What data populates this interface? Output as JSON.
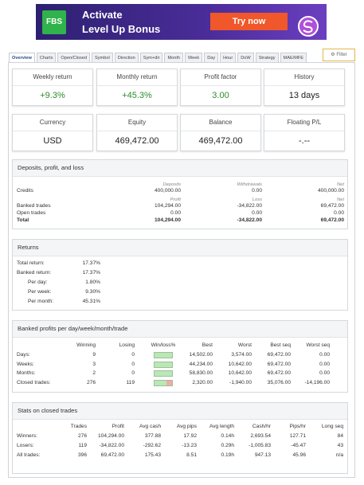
{
  "banner": {
    "brand": "FBS",
    "line1": "Activate",
    "line2": "Level Up Bonus",
    "button": "Try now"
  },
  "tabs": [
    "Overview",
    "Charts",
    "Open/Closed",
    "Symbol",
    "Direction",
    "Sym+dir",
    "Month",
    "Week",
    "Day",
    "Hour",
    "DoW",
    "Strategy",
    "MAE/MFE"
  ],
  "filter": "Filter",
  "cards": [
    {
      "label": "Weekly return",
      "value": "+9.3%",
      "color": "#2e8b2e"
    },
    {
      "label": "Monthly return",
      "value": "+45.3%",
      "color": "#2e8b2e"
    },
    {
      "label": "Profit factor",
      "value": "3.00",
      "color": "#2e8b2e"
    },
    {
      "label": "History",
      "value": "13 days"
    },
    {
      "label": "Currency",
      "value": "USD"
    },
    {
      "label": "Equity",
      "value": "469,472.00"
    },
    {
      "label": "Balance",
      "value": "469,472.00"
    },
    {
      "label": "Floating P/L",
      "value": "-.--"
    }
  ],
  "deposits": {
    "title": "Deposits, profit, and loss",
    "header1": [
      "Deposits",
      "Withdrawals",
      "Net"
    ],
    "header2": [
      "Profit",
      "Loss",
      "Net"
    ],
    "rows": [
      {
        "label": "Credits",
        "values": [
          "400,000.00",
          "0.00",
          "400,000.00"
        ]
      },
      {
        "label": "Banked trades",
        "values": [
          "104,294.00",
          "-34,822.00",
          "69,472.00"
        ]
      },
      {
        "label": "Open trades",
        "values": [
          "0.00",
          "0.00",
          "0.00"
        ]
      },
      {
        "label": "Total",
        "values": [
          "104,294.00",
          "-34,822.00",
          "69,472.00"
        ]
      }
    ]
  },
  "returns": {
    "title": "Returns",
    "rows": [
      {
        "label": "Total return:",
        "value": "17.37%"
      },
      {
        "label": "Banked return:",
        "value": "17.37%"
      },
      {
        "label": "Per day:",
        "value": "1.80%"
      },
      {
        "label": "Per week:",
        "value": "9.30%"
      },
      {
        "label": "Per month:",
        "value": "45.31%"
      }
    ]
  },
  "banked": {
    "title": "Banked profits per day/week/month/trade",
    "columns": [
      "Winning",
      "Losing",
      "Win/loss%",
      "Best",
      "Worst",
      "Best seq",
      "Worst seq"
    ],
    "rows": [
      {
        "label": "Days:",
        "winning": 9,
        "losing": 0,
        "stats": [
          "14,502.00",
          "3,574.00",
          "69,472.00",
          "0.00"
        ]
      },
      {
        "label": "Weeks:",
        "winning": 3,
        "losing": 0,
        "stats": [
          "44,234.00",
          "10,642.00",
          "69,472.00",
          "0.00"
        ]
      },
      {
        "label": "Months:",
        "winning": 2,
        "losing": 0,
        "stats": [
          "58,830.00",
          "10,642.00",
          "69,472.00",
          "0.00"
        ]
      },
      {
        "label": "Closed trades:",
        "winning": 276,
        "losing": 119,
        "stats": [
          "2,320.00",
          "-1,940.00",
          "35,076.00",
          "-14,196.00"
        ]
      }
    ]
  },
  "closed": {
    "title": "Stats on closed trades",
    "columns": [
      "Trades",
      "Profit",
      "Avg cash",
      "Avg pips",
      "Avg length",
      "Cash/hr",
      "Pips/hr",
      "Long seq"
    ],
    "rows": [
      {
        "label": "Winners:",
        "values": [
          "276",
          "104,294.00",
          "377.88",
          "17.92",
          "0.14h",
          "2,693.54",
          "127.71",
          "84"
        ]
      },
      {
        "label": "Losers:",
        "values": [
          "119",
          "-34,822.00",
          "-292.62",
          "-13.23",
          "0.29h",
          "-1,005.83",
          "-45.47",
          "43"
        ]
      },
      {
        "label": "All trades:",
        "values": [
          "396",
          "69,472.00",
          "175.43",
          "8.51",
          "0.19h",
          "947.13",
          "45.96",
          "n/a"
        ]
      }
    ]
  }
}
